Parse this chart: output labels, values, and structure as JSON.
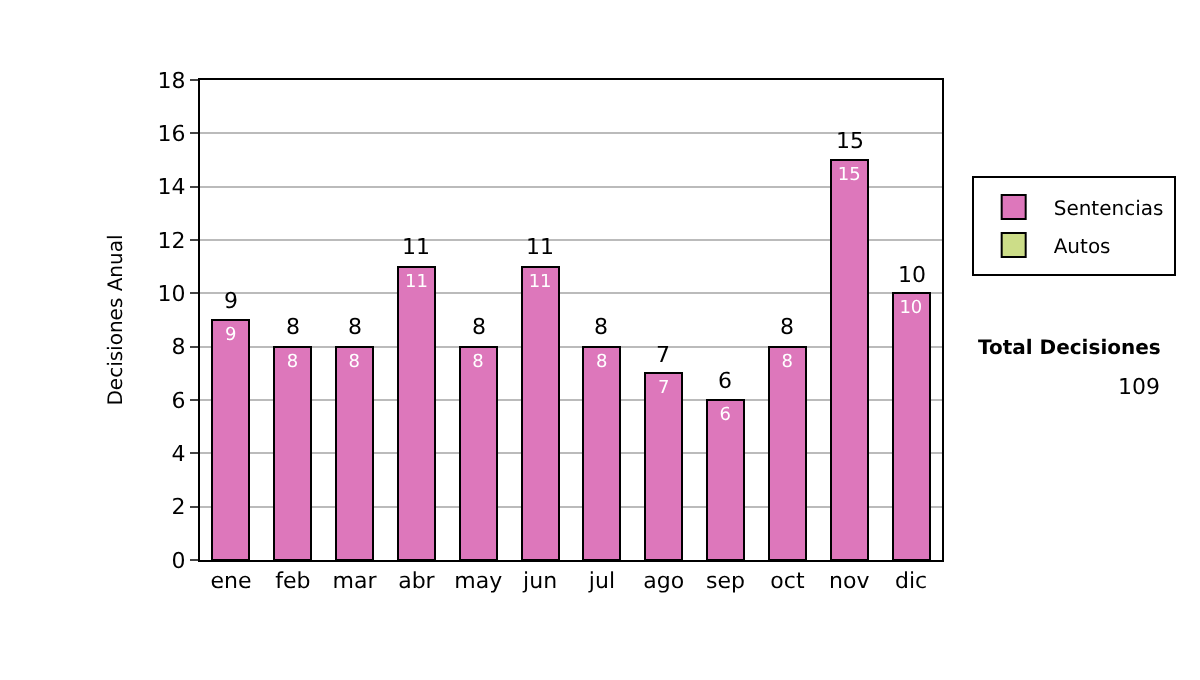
{
  "chart_data": {
    "type": "bar",
    "ylabel": "Decisiones Anual",
    "categories": [
      "ene",
      "feb",
      "mar",
      "abr",
      "may",
      "jun",
      "jul",
      "ago",
      "sep",
      "oct",
      "nov",
      "dic"
    ],
    "series": [
      {
        "name": "Sentencias",
        "color": "#dd77bb",
        "values": [
          9,
          8,
          8,
          11,
          8,
          11,
          8,
          7,
          6,
          8,
          15,
          10
        ]
      },
      {
        "name": "Autos",
        "color": "#ccdd88",
        "values": [
          null,
          null,
          null,
          null,
          null,
          null,
          null,
          null,
          null,
          null,
          null,
          null
        ]
      }
    ],
    "stacked": true,
    "data_labels": true,
    "totals": [
      "9",
      "8",
      "8",
      "11",
      "8",
      "11",
      "8",
      "7",
      "6",
      "8",
      "15",
      "10"
    ],
    "ylim": [
      0,
      18
    ],
    "yticks": [
      0,
      2,
      4,
      6,
      8,
      10,
      12,
      14,
      16,
      18
    ],
    "grid": "y",
    "legend": "right",
    "annotations": [
      "Total Decisiones",
      "109"
    ]
  }
}
